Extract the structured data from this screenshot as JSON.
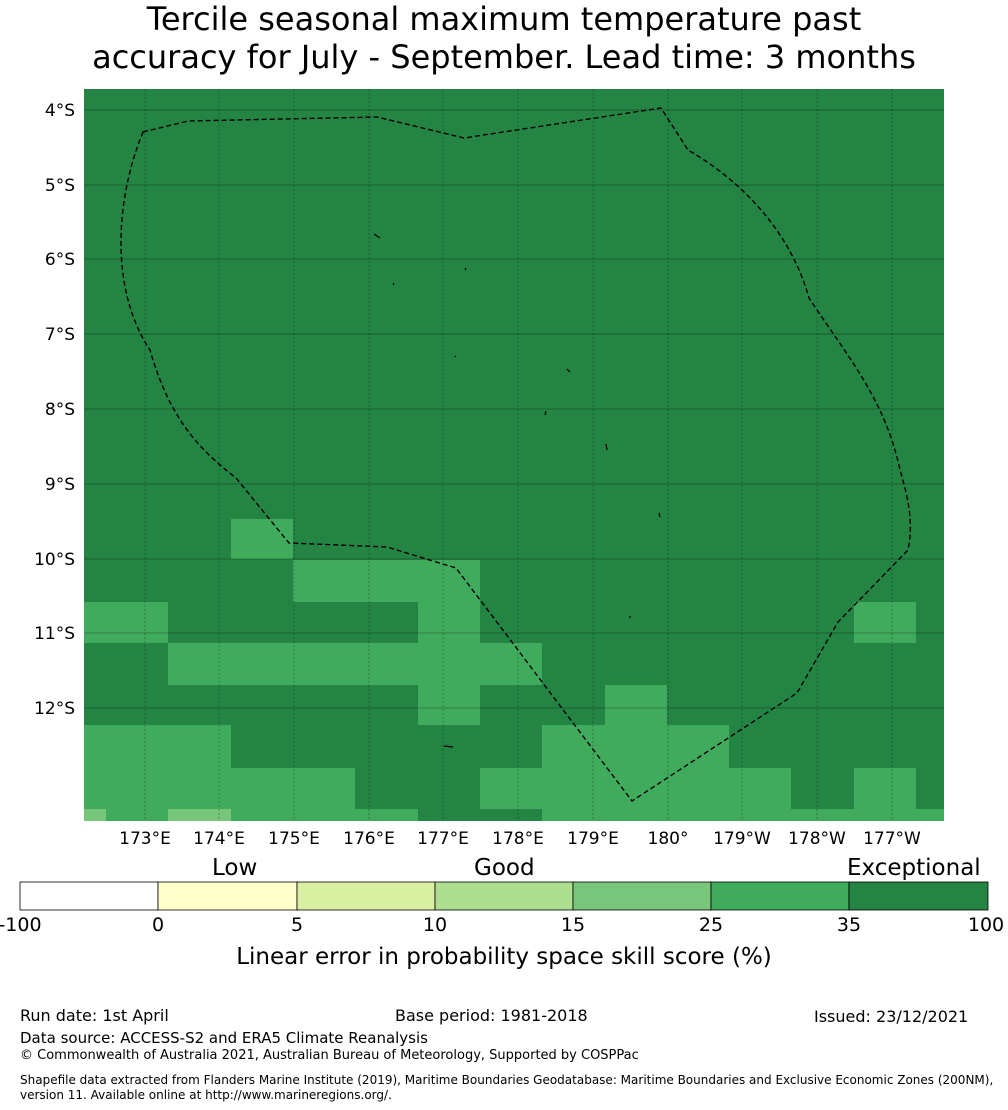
{
  "title_line1": "Tercile seasonal maximum temperature past",
  "title_line2": "accuracy for July - September. Lead time: 3 months",
  "map": {
    "lat_ticks": [
      "4°S",
      "5°S",
      "6°S",
      "7°S",
      "8°S",
      "9°S",
      "10°S",
      "11°S",
      "12°S"
    ],
    "lon_ticks": [
      "173°E",
      "174°E",
      "175°E",
      "176°E",
      "177°E",
      "178°E",
      "179°E",
      "180°",
      "179°W",
      "178°W",
      "177°W"
    ],
    "background_color": "#238443",
    "cell_colors": {
      "25-35": "#41ab5d",
      "15-25": "#78c679"
    }
  },
  "colorbar": {
    "categories": [
      "Low",
      "Good",
      "Exceptional"
    ],
    "ticks": [
      "-100",
      "0",
      "5",
      "10",
      "15",
      "25",
      "35",
      "100"
    ],
    "colors": [
      "#ffffff",
      "#ffffcc",
      "#d9f0a3",
      "#addd8e",
      "#78c679",
      "#41ab5d",
      "#238443"
    ],
    "label": "Linear error in probability space skill score (%)"
  },
  "footer": {
    "run_date": "Run date: 1st April",
    "base_period": "Base period: 1981-2018",
    "issued": "Issued: 23/12/2021",
    "data_source": "Data source: ACCESS-S2 and ERA5 Climate Reanalysis",
    "copyright": "© Commonwealth of Australia 2021, Australian Bureau of Meteorology, Supported by COSPPac",
    "shapefile": "Shapefile data extracted from Flanders Marine Institute (2019), Maritime Boundaries Geodatabase: Maritime Boundaries and Exclusive Economic Zones (200NM), version 11. Available online at http://www.marineregions.org/."
  }
}
